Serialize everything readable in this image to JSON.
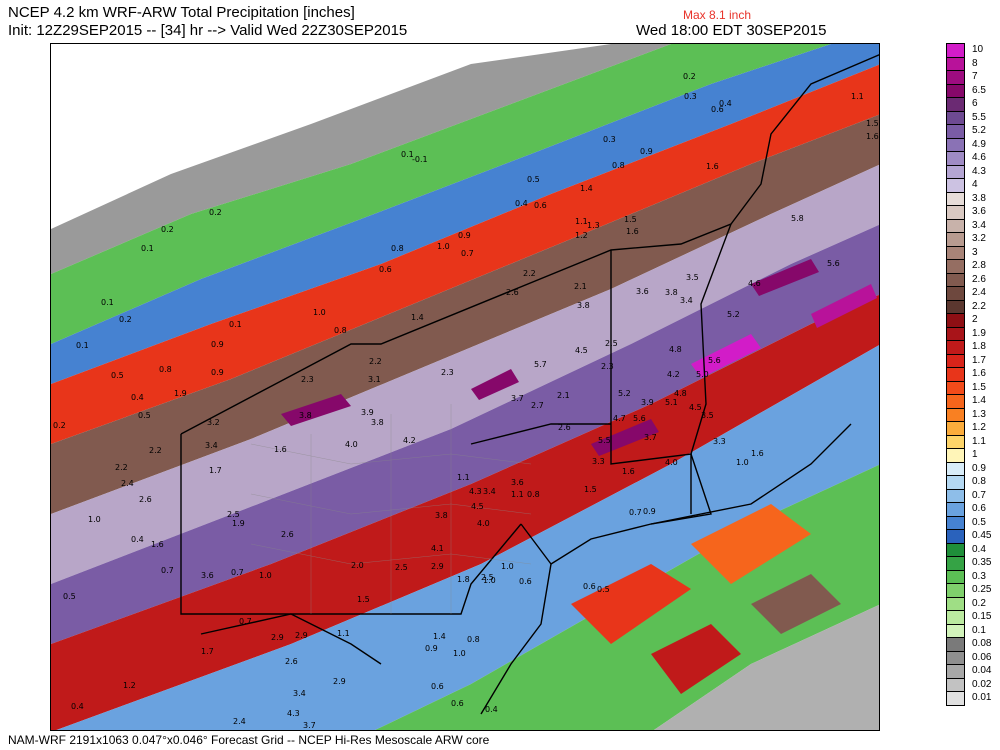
{
  "header": {
    "title": "NCEP 4.2 km WRF-ARW Total Precipitation [inches]",
    "init_line": "Init: 12Z29SEP2015 -- [34] hr --> Valid Wed 22Z30SEP2015",
    "max_label": "Max 8.1 inch",
    "valid_local": "Wed 18:00 EDT 30SEP2015"
  },
  "footer": "NAM-WRF 2191x1063 0.047°x0.046° Forecast Grid -- NCEP Hi-Res Mesoscale ARW core",
  "legend": {
    "levels": [
      "10",
      "8",
      "7",
      "6.5",
      "6",
      "5.5",
      "5.2",
      "4.9",
      "4.6",
      "4.3",
      "4",
      "3.8",
      "3.6",
      "3.4",
      "3.2",
      "3",
      "2.8",
      "2.6",
      "2.4",
      "2.2",
      "2",
      "1.9",
      "1.8",
      "1.7",
      "1.6",
      "1.5",
      "1.4",
      "1.3",
      "1.2",
      "1.1",
      "1",
      "0.9",
      "0.8",
      "0.7",
      "0.6",
      "0.5",
      "0.45",
      "0.4",
      "0.35",
      "0.3",
      "0.25",
      "0.2",
      "0.15",
      "0.1",
      "0.08",
      "0.06",
      "0.04",
      "0.02",
      "0.01"
    ],
    "colors": [
      "#d21cc8",
      "#b8129a",
      "#9e0c80",
      "#86086a",
      "#6b2a73",
      "#6e4a92",
      "#7a5ca5",
      "#8a72b5",
      "#9f8bc4",
      "#b4a5d3",
      "#ccc2e2",
      "#e6dcd8",
      "#d9c9c2",
      "#c8b2aa",
      "#b89b90",
      "#a88478",
      "#956e62",
      "#815a4f",
      "#6e483e",
      "#5b372f",
      "#8e0f14",
      "#a81419",
      "#c01a1a",
      "#d8241a",
      "#e8351a",
      "#f24b1a",
      "#f6651c",
      "#f98022",
      "#fbac3c",
      "#fdd469",
      "#fff5b8",
      "#d8ecf8",
      "#b4d8f2",
      "#8ebee9",
      "#6aa2df",
      "#4682d1",
      "#2a62bc",
      "#1f8f3a",
      "#35a345",
      "#5cbf55",
      "#7fd06c",
      "#9fde85",
      "#bbeaa0",
      "#d2f3bb",
      "#7a7a7a",
      "#8f8f8f",
      "#a8a8a8",
      "#c2c2c2",
      "#e0e0e0"
    ]
  },
  "map": {
    "point_labels": [
      {
        "v": "0.2"
      },
      {
        "v": "0.3"
      },
      {
        "v": "0.6"
      },
      {
        "v": "0.4"
      },
      {
        "v": "1.1"
      },
      {
        "v": "1.5"
      },
      {
        "v": "1.6"
      },
      {
        "v": "0.1"
      },
      {
        "v": "-0.1"
      },
      {
        "v": "0.3"
      },
      {
        "v": "0.9"
      },
      {
        "v": "0.8"
      },
      {
        "v": "1.6"
      },
      {
        "v": "0.2"
      },
      {
        "v": "0.5"
      },
      {
        "v": "0.4"
      },
      {
        "v": "0.6"
      },
      {
        "v": "1.4"
      },
      {
        "v": "1.1"
      },
      {
        "v": "1.3"
      },
      {
        "v": "1.5"
      },
      {
        "v": "1.6"
      },
      {
        "v": "1.2"
      },
      {
        "v": "0.1"
      },
      {
        "v": "0.2"
      },
      {
        "v": "0.9"
      },
      {
        "v": "1.0"
      },
      {
        "v": "0.8"
      },
      {
        "v": "0.7"
      },
      {
        "v": "0.6"
      },
      {
        "v": "2.2"
      },
      {
        "v": "2.1"
      },
      {
        "v": "3.5"
      },
      {
        "v": "5.8"
      },
      {
        "v": "5.6"
      },
      {
        "v": "2.6"
      },
      {
        "v": "3.8"
      },
      {
        "v": "3.6"
      },
      {
        "v": "3.8"
      },
      {
        "v": "3.4"
      },
      {
        "v": "4.6"
      },
      {
        "v": "5.2"
      },
      {
        "v": "0.1"
      },
      {
        "v": "1.0"
      },
      {
        "v": "1.4"
      },
      {
        "v": "0.8"
      },
      {
        "v": "0.2"
      },
      {
        "v": "0.1"
      },
      {
        "v": "0.1"
      },
      {
        "v": "0.9"
      },
      {
        "v": "4.5"
      },
      {
        "v": "2.5"
      },
      {
        "v": "4.8"
      },
      {
        "v": "5.6"
      },
      {
        "v": "0.5"
      },
      {
        "v": "0.8"
      },
      {
        "v": "2.2"
      },
      {
        "v": "5.7"
      },
      {
        "v": "2.3"
      },
      {
        "v": "4.2"
      },
      {
        "v": "5.0"
      },
      {
        "v": "2.3"
      },
      {
        "v": "3.1"
      },
      {
        "v": "2.3"
      },
      {
        "v": "0.9"
      },
      {
        "v": "1.9"
      },
      {
        "v": "0.4"
      },
      {
        "v": "0.5"
      },
      {
        "v": "3.7"
      },
      {
        "v": "2.7"
      },
      {
        "v": "2.1"
      },
      {
        "v": "5.2"
      },
      {
        "v": "3.9"
      },
      {
        "v": "5.1"
      },
      {
        "v": "4.8"
      },
      {
        "v": "4.5"
      },
      {
        "v": "3.5"
      },
      {
        "v": "0.2"
      },
      {
        "v": "3.2"
      },
      {
        "v": "3.8"
      },
      {
        "v": "3.9"
      },
      {
        "v": "3.8"
      },
      {
        "v": "4.7"
      },
      {
        "v": "5.6"
      },
      {
        "v": "3.4"
      },
      {
        "v": "4.0"
      },
      {
        "v": "4.2"
      },
      {
        "v": "2.6"
      },
      {
        "v": "5.5"
      },
      {
        "v": "3.7"
      },
      {
        "v": "3.3"
      },
      {
        "v": "2.2"
      },
      {
        "v": "1.6"
      },
      {
        "v": "3.3"
      },
      {
        "v": "4.0"
      },
      {
        "v": "1.0"
      },
      {
        "v": "1.6"
      },
      {
        "v": "2.2"
      },
      {
        "v": "2.4"
      },
      {
        "v": "1.7"
      },
      {
        "v": "1.1"
      },
      {
        "v": "3.6"
      },
      {
        "v": "1.5"
      },
      {
        "v": "1.6"
      },
      {
        "v": "2.6"
      },
      {
        "v": "4.3"
      },
      {
        "v": "3.4"
      },
      {
        "v": "1.1"
      },
      {
        "v": "0.8"
      },
      {
        "v": "1.0"
      },
      {
        "v": "2.5"
      },
      {
        "v": "1.9"
      },
      {
        "v": "3.8"
      },
      {
        "v": "4.5"
      },
      {
        "v": "4.0"
      },
      {
        "v": "0.7"
      },
      {
        "v": "0.9"
      },
      {
        "v": "0.4"
      },
      {
        "v": "1.6"
      },
      {
        "v": "2.6"
      },
      {
        "v": "4.1"
      },
      {
        "v": "2.5"
      },
      {
        "v": "0.6"
      },
      {
        "v": "0.5"
      },
      {
        "v": "0.7"
      },
      {
        "v": "3.6"
      },
      {
        "v": "0.7"
      },
      {
        "v": "1.0"
      },
      {
        "v": "2.0"
      },
      {
        "v": "2.5"
      },
      {
        "v": "2.9"
      },
      {
        "v": "1.0"
      },
      {
        "v": "0.6"
      },
      {
        "v": "0.5"
      },
      {
        "v": "1.5"
      },
      {
        "v": "1.8"
      },
      {
        "v": "1.0"
      },
      {
        "v": "0.7"
      },
      {
        "v": "1.1"
      },
      {
        "v": "2.9"
      },
      {
        "v": "2.9"
      },
      {
        "v": "0.8"
      },
      {
        "v": "1.4"
      },
      {
        "v": "1.7"
      },
      {
        "v": "2.6"
      },
      {
        "v": "1.0"
      },
      {
        "v": "0.9"
      },
      {
        "v": "0.6"
      },
      {
        "v": "1.2"
      },
      {
        "v": "3.4"
      },
      {
        "v": "2.9"
      },
      {
        "v": "0.4"
      },
      {
        "v": "0.4"
      },
      {
        "v": "2.4"
      },
      {
        "v": "4.3"
      },
      {
        "v": "3.7"
      },
      {
        "v": "0.6"
      }
    ]
  }
}
